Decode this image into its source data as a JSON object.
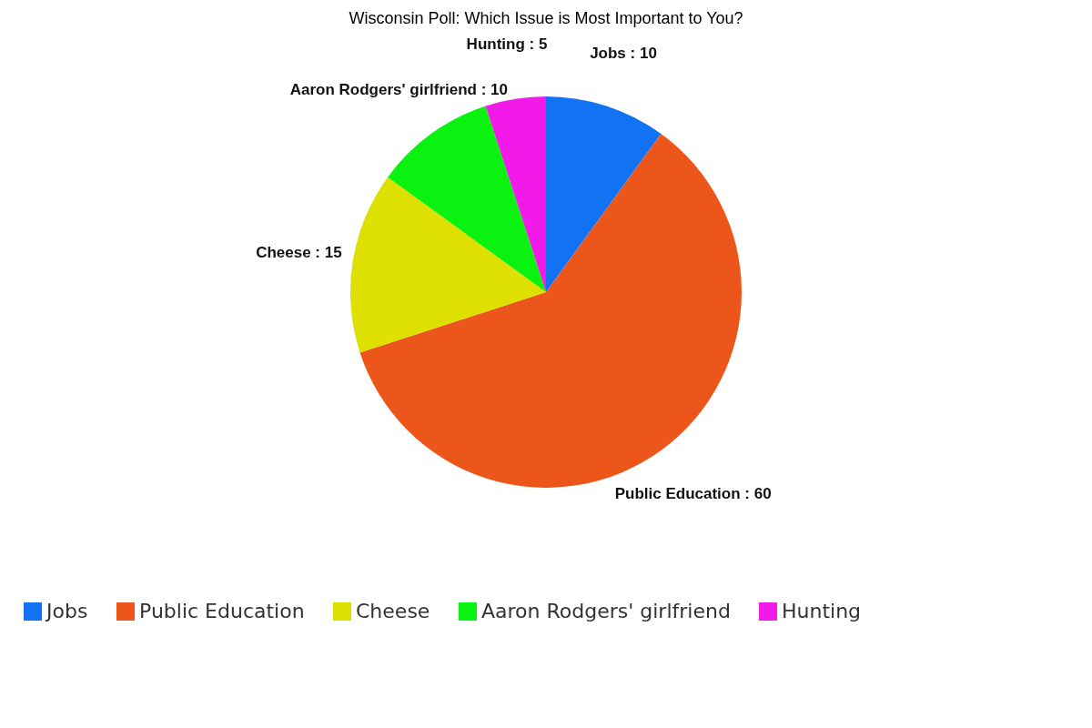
{
  "chart_data": {
    "type": "pie",
    "title": "Wisconsin Poll: Which Issue is Most Important to You?",
    "categories": [
      "Jobs",
      "Public Education",
      "Cheese",
      "Aaron Rodgers' girlfriend",
      "Hunting"
    ],
    "values": [
      10,
      60,
      15,
      10,
      5
    ],
    "colors": [
      "#1172f4",
      "#ec561b",
      "#dde000",
      "#0af20f",
      "#f21ae8"
    ],
    "value_labels": [
      "Jobs : 10",
      "Public Education : 60",
      "Cheese : 15",
      "Aaron Rodgers' girlfriend : 10",
      "Hunting : 5"
    ],
    "legend": "bottom"
  }
}
